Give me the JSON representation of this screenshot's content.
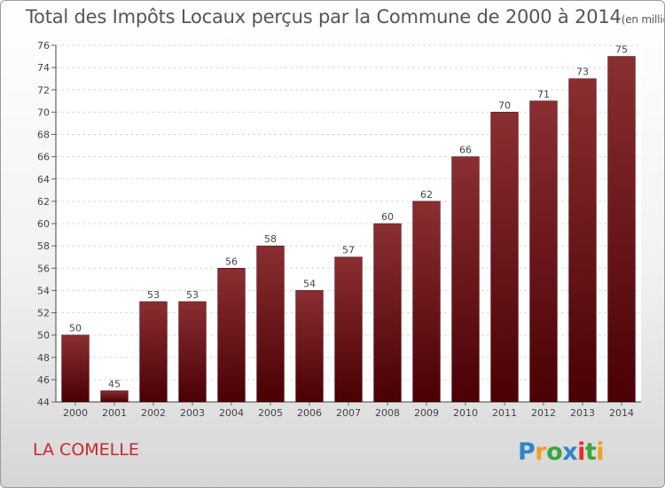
{
  "chart_data": {
    "type": "bar",
    "title": "Total des Impôts Locaux perçus par la Commune de 2000 à 2014",
    "subtitle": "(en milliers d'€)",
    "categories": [
      "2000",
      "2001",
      "2002",
      "2003",
      "2004",
      "2005",
      "2006",
      "2007",
      "2008",
      "2009",
      "2010",
      "2011",
      "2012",
      "2013",
      "2014"
    ],
    "values": [
      50,
      45,
      53,
      53,
      56,
      58,
      54,
      57,
      60,
      62,
      66,
      70,
      71,
      73,
      75
    ],
    "ylim": [
      44,
      76
    ],
    "yticks": [
      44,
      46,
      48,
      50,
      52,
      54,
      56,
      58,
      60,
      62,
      64,
      66,
      68,
      70,
      72,
      74,
      76
    ],
    "grid": true,
    "bar_color": "#7a1518"
  },
  "footer": {
    "commune": "LA COMELLE",
    "logo_text": "Proxiti"
  }
}
